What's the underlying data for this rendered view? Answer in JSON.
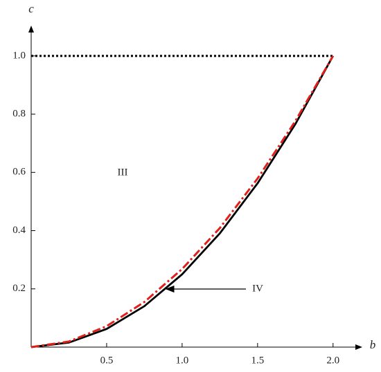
{
  "chart_data": {
    "type": "line",
    "xlabel": "b",
    "ylabel": "c",
    "xlim": [
      0,
      2.18
    ],
    "ylim": [
      0,
      1.097
    ],
    "xticks": [
      0.5,
      {
        "value": 1.0,
        "label": "1.0"
      },
      1.5,
      {
        "value": 2.0,
        "label": "2.0"
      }
    ],
    "yticks": [
      0.2,
      0.4,
      0.6,
      0.8,
      {
        "value": 1.0,
        "label": "1.0"
      }
    ],
    "series": [
      {
        "color": "#000000",
        "style": "dotted",
        "x": [
          0,
          2.0
        ],
        "values": [
          1.0,
          1.0
        ]
      },
      {
        "color": "#000000",
        "style": "solid",
        "x": [
          0,
          0.25,
          0.5,
          0.75,
          1.0,
          1.25,
          1.5,
          1.75,
          2.0
        ],
        "values": [
          0,
          0.0156,
          0.0625,
          0.1406,
          0.25,
          0.3906,
          0.5625,
          0.7656,
          1.0
        ]
      },
      {
        "color": "#e0201b",
        "style": "dashdot",
        "x": [
          0,
          0.25,
          0.5,
          0.75,
          1.0,
          1.25,
          1.5,
          1.75,
          2.0
        ],
        "values": [
          0,
          0.0192,
          0.0718,
          0.155,
          0.268,
          0.409,
          0.579,
          0.776,
          1.0
        ]
      }
    ],
    "annotations": [
      "III",
      "IV"
    ]
  }
}
